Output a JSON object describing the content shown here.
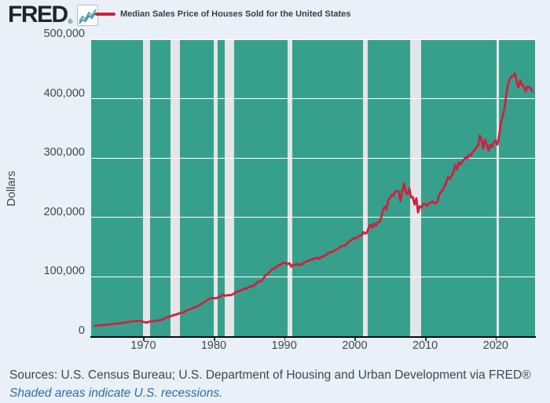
{
  "header": {
    "logo_text": "FRED",
    "logo_registered": "®"
  },
  "legend": {
    "label": "Median Sales Price of Houses Sold for the United States",
    "line_color": "#d0203f"
  },
  "footer": {
    "sources": "Sources: U.S. Census Bureau; U.S. Department of Housing and Urban Development via FRED®",
    "note": "Shaded areas indicate U.S. recessions."
  },
  "chart_data": {
    "type": "line",
    "title": "Median Sales Price of Houses Sold for the United States",
    "xlabel": "",
    "ylabel": "Dollars",
    "xlim": [
      1962.6,
      2025.6
    ],
    "ylim": [
      0,
      500000
    ],
    "grid": true,
    "legend_position": "top-left",
    "colors": {
      "line": "#d0203f",
      "plot_background": "#37a08c",
      "recession_band": "#e3e5e6",
      "gridline": "#ffffff",
      "page_background": "#e9f0f8"
    },
    "x_ticks": [
      1970,
      1980,
      1990,
      2000,
      2010,
      2020
    ],
    "y_ticks": [
      {
        "value": 0,
        "label": "0"
      },
      {
        "value": 100000,
        "label": "100,000"
      },
      {
        "value": 200000,
        "label": "200,000"
      },
      {
        "value": 300000,
        "label": "300,000"
      },
      {
        "value": 400000,
        "label": "400,000"
      },
      {
        "value": 500000,
        "label": "500,000"
      }
    ],
    "recessions": [
      [
        1969.92,
        1970.92
      ],
      [
        1973.83,
        1975.17
      ],
      [
        1980.0,
        1980.5
      ],
      [
        1981.5,
        1982.92
      ],
      [
        1990.5,
        1991.17
      ],
      [
        2001.17,
        2001.83
      ],
      [
        2007.92,
        2009.42
      ],
      [
        2020.08,
        2020.33
      ]
    ],
    "series": [
      {
        "name": "Median Sales Price of Houses Sold for the United States",
        "color": "#d0203f",
        "frequency": "quarterly",
        "start_year": 1963.0,
        "period_years": 0.25,
        "values": [
          17800,
          18000,
          17900,
          18500,
          18500,
          18900,
          18900,
          19300,
          19600,
          20000,
          20000,
          20600,
          21000,
          21400,
          21600,
          21700,
          22300,
          22700,
          23300,
          23700,
          23900,
          24700,
          24700,
          25200,
          25600,
          25600,
          25900,
          25600,
          23900,
          23700,
          22700,
          24400,
          24800,
          25200,
          25100,
          25500,
          26100,
          26700,
          27600,
          27600,
          29900,
          31500,
          32500,
          33100,
          34000,
          35400,
          36000,
          36900,
          38100,
          38900,
          39500,
          40200,
          42200,
          43800,
          44800,
          46000,
          47100,
          48600,
          48900,
          51100,
          52500,
          54800,
          56400,
          58100,
          60300,
          62100,
          63800,
          64700,
          63700,
          64200,
          64600,
          66100,
          67400,
          70100,
          68800,
          68300,
          69300,
          68900,
          69600,
          70800,
          73200,
          74800,
          75500,
          76400,
          78200,
          79900,
          79600,
          80900,
          82800,
          84200,
          83800,
          85800,
          88200,
          92000,
          91800,
          93000,
          95900,
          101500,
          103500,
          106100,
          110000,
          112500,
          113200,
          115000,
          118000,
          120000,
          120000,
          123000,
          123900,
          122900,
          121500,
          122900,
          117000,
          120000,
          120000,
          122000,
          119500,
          121500,
          120000,
          123500,
          125000,
          126500,
          127000,
          129000,
          130000,
          130000,
          131750,
          132250,
          130000,
          133500,
          134000,
          136000,
          137000,
          140000,
          141000,
          142000,
          143000,
          145000,
          146900,
          148000,
          151000,
          152000,
          152500,
          154000,
          157000,
          160500,
          161000,
          164000,
          165300,
          165000,
          167800,
          169800,
          169800,
          175200,
          172600,
          174500,
          182900,
          187600,
          183000,
          190200,
          186000,
          191800,
          191900,
          198800,
          212700,
          217600,
          213500,
          229300,
          232500,
          237900,
          236300,
          243600,
          244950,
          243200,
          227700,
          244700,
          257400,
          242900,
          238900,
          249100,
          233900,
          234300,
          221900,
          232200,
          208400,
          219000,
          216700,
          222600,
          222900,
          219500,
          224000,
          224300,
          226900,
          224500,
          224000,
          226700,
          238400,
          243200,
          245800,
          252800,
          258400,
          268100,
          264800,
          270200,
          275200,
          288000,
          281000,
          292700,
          289200,
          293500,
          296900,
          301500,
          299800,
          306000,
          303800,
          310900,
          313100,
          318200,
          320500,
          337900,
          331800,
          315600,
          330600,
          322800,
          313000,
          322500,
          318400,
          327100,
          329000,
          322600,
          337500,
          358700,
          369800,
          382600,
          404700,
          423600,
          433100,
          437700,
          438000,
          442600,
          429000,
          418500,
          431000,
          423200,
          420800,
          412300,
          420400,
          419300,
          416900,
          410800
        ]
      }
    ]
  }
}
